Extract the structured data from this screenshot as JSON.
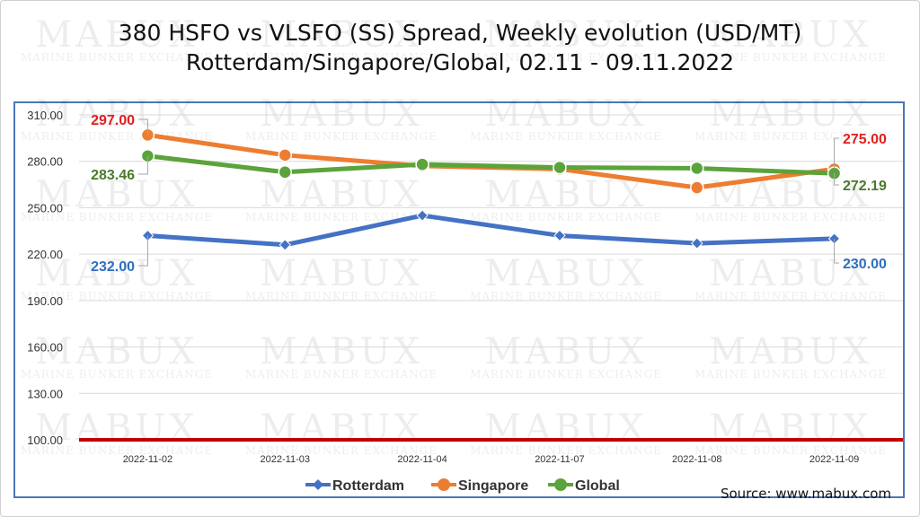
{
  "header": {
    "title_line1": "380 HSFO vs VLSFO (SS) Spread, Weekly evolution (USD/MT)",
    "title_line2": "Rotterdam/Singapore/Global, 02.11 - 09.11.2022"
  },
  "watermark": {
    "brand": "MABUX",
    "tagline": "MARINE BUNKER EXCHANGE"
  },
  "source": "Source: www.mabux.com",
  "colors": {
    "rotterdam": "#4472C4",
    "singapore": "#ED7D31",
    "global": "#5BA33B",
    "baseline": "#C00000",
    "label_red": "#E02020",
    "label_blue": "#2E6FC2",
    "label_green": "#4A7A2C"
  },
  "chart_data": {
    "type": "line",
    "title": "380 HSFO vs VLSFO (SS) Spread, Weekly evolution (USD/MT)",
    "subtitle": "Rotterdam/Singapore/Global, 02.11 - 09.11.2022",
    "categories": [
      "2022-11-02",
      "2022-11-03",
      "2022-11-04",
      "2022-11-07",
      "2022-11-08",
      "2022-11-09"
    ],
    "ylim": [
      100,
      310
    ],
    "y_ticks": [
      "100.00",
      "130.00",
      "160.00",
      "190.00",
      "220.00",
      "250.00",
      "280.00",
      "310.00"
    ],
    "grid": true,
    "legend_position": "bottom",
    "series": [
      {
        "name": "Rotterdam",
        "values": [
          232.0,
          226.0,
          245.0,
          232.0,
          227.0,
          230.0
        ]
      },
      {
        "name": "Singapore",
        "values": [
          297.0,
          284.0,
          277.0,
          275.0,
          263.0,
          275.0
        ]
      },
      {
        "name": "Global",
        "values": [
          283.46,
          273.0,
          278.0,
          276.0,
          275.5,
          272.19
        ]
      }
    ],
    "data_labels": [
      {
        "series": "Singapore",
        "index": 0,
        "text": "297.00"
      },
      {
        "series": "Global",
        "index": 0,
        "text": "283.46"
      },
      {
        "series": "Rotterdam",
        "index": 0,
        "text": "232.00"
      },
      {
        "series": "Singapore",
        "index": 5,
        "text": "275.00"
      },
      {
        "series": "Global",
        "index": 5,
        "text": "272.19"
      },
      {
        "series": "Rotterdam",
        "index": 5,
        "text": "230.00"
      }
    ],
    "reference_line": {
      "value": 100
    }
  }
}
